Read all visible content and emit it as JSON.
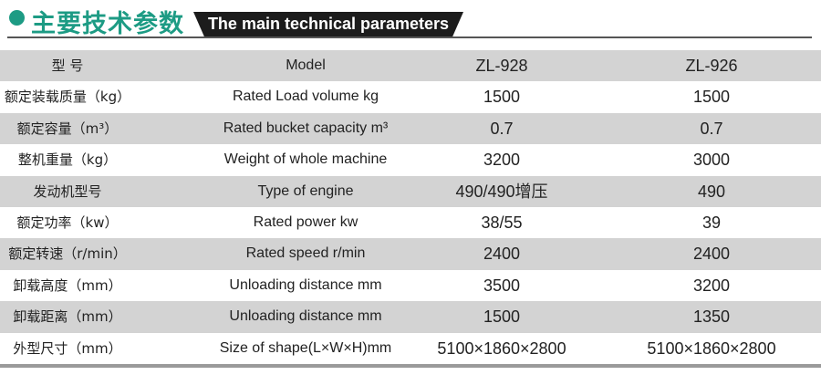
{
  "header": {
    "title_cn": "主要技术参数",
    "title_en": "The main technical parameters"
  },
  "colors": {
    "accent": "#1d9b84",
    "band": "#1c1c1c",
    "row_shade": "#d3d3d3"
  },
  "table": {
    "rows": [
      {
        "cn": "型  号",
        "en": "Model",
        "v1": "ZL-928",
        "v2": "ZL-926"
      },
      {
        "cn": "额定装载质量（kg）",
        "en": "Rated Load volume kg",
        "v1": "1500",
        "v2": "1500"
      },
      {
        "cn": "额定容量（m³）",
        "en": "Rated bucket capacity m³",
        "v1": "0.7",
        "v2": "0.7"
      },
      {
        "cn": "整机重量（kg）",
        "en": "Weight of whole machine",
        "v1": "3200",
        "v2": "3000"
      },
      {
        "cn": "发动机型号",
        "en": "Type of engine",
        "v1": "490/490增压",
        "v2": "490"
      },
      {
        "cn": "额定功率（kw）",
        "en": "Rated power kw",
        "v1": "38/55",
        "v2": "39"
      },
      {
        "cn": "额定转速（r/min）",
        "en": "Rated speed r/min",
        "v1": "2400",
        "v2": "2400"
      },
      {
        "cn": "卸载高度（mm）",
        "en": "Unloading distance mm",
        "v1": "3500",
        "v2": "3200"
      },
      {
        "cn": "卸载距离（mm）",
        "en": "Unloading distance mm",
        "v1": "1500",
        "v2": "1350"
      },
      {
        "cn": "外型尺寸（mm）",
        "en": "Size of shape(L×W×H)mm",
        "v1": "5100×1860×2800",
        "v2": "5100×1860×2800"
      }
    ]
  }
}
